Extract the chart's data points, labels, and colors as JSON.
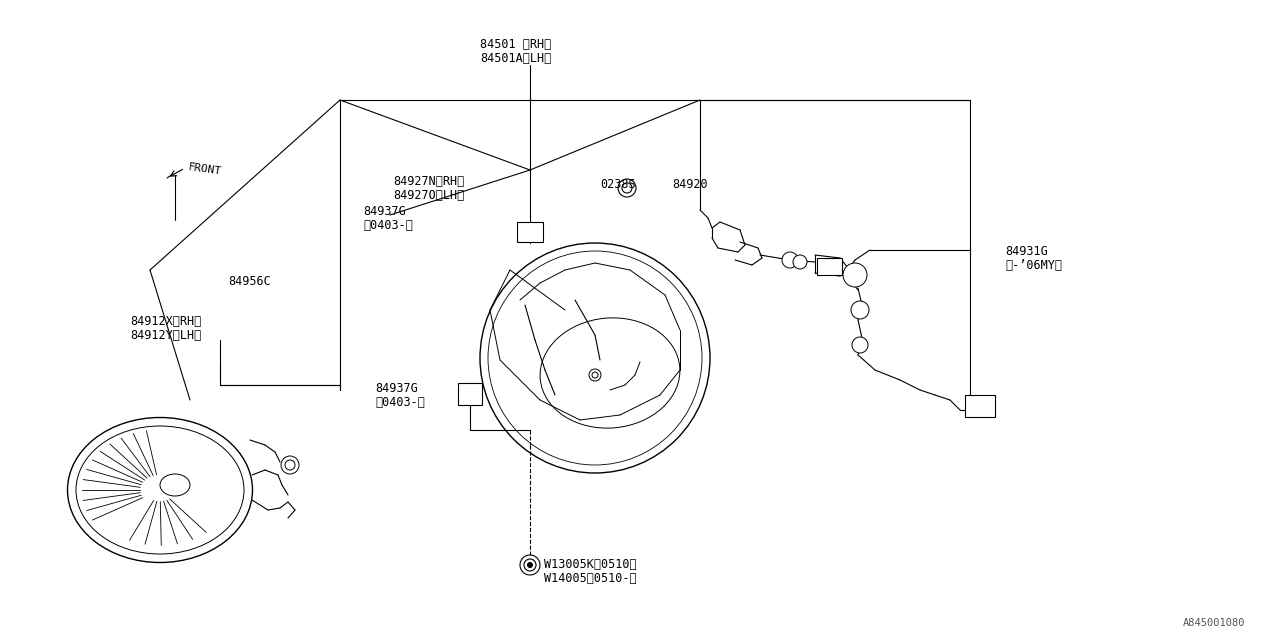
{
  "bg_color": "#ffffff",
  "line_color": "#000000",
  "text_color": "#000000",
  "font_size": 8.5,
  "figsize": [
    12.8,
    6.4
  ],
  "dpi": 100,
  "watermark": "A845001080",
  "label_84501_rh": "84501 〈RH〉",
  "label_84501a_lh": "84501A〈LH〉",
  "label_0238S": "0238S",
  "label_84920": "84920",
  "label_84927N": "84927N〈RH〉",
  "label_84927O": "84927O〈LH〉",
  "label_84937G_top": "84937G",
  "label_0403_top": "〲0403-〉",
  "label_84937G_bot": "84937G",
  "label_0403_bot": "〲0403-〉",
  "label_84956C": "84956C",
  "label_84912X": "84912X〈RH〉",
  "label_84912Y": "84912Y〈LH〉",
  "label_84931G": "84931G",
  "label_06MY": "（-’06MY）",
  "label_W13005K": "W13005K〲0510〉",
  "label_W14005": "W14005〲0510-〉",
  "label_FRONT": "FRONT"
}
